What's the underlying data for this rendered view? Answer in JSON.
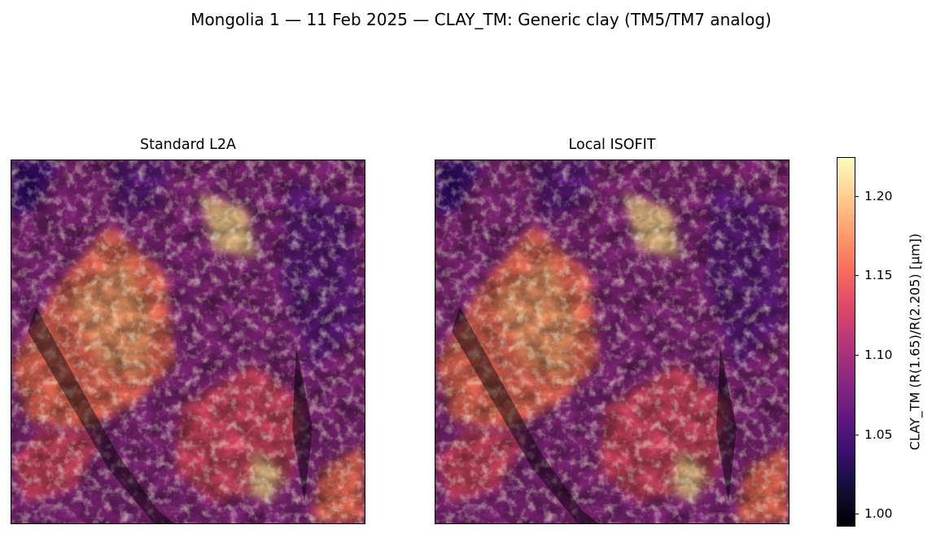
{
  "figure": {
    "suptitle": "Mongolia 1 — 11 Feb 2025 — CLAY_TM: Generic clay (TM5/TM7 analog)",
    "colormap": "magma",
    "panels": [
      {
        "title": "Standard L2A"
      },
      {
        "title": "Local ISOFIT"
      }
    ],
    "colorbar": {
      "label": "CLAY_TM  (R(1.65)/R(2.205)  [µm])",
      "ticks": [
        "1.20",
        "1.15",
        "1.10",
        "1.05",
        "1.00"
      ],
      "range": [
        0.99,
        1.223
      ]
    }
  }
}
